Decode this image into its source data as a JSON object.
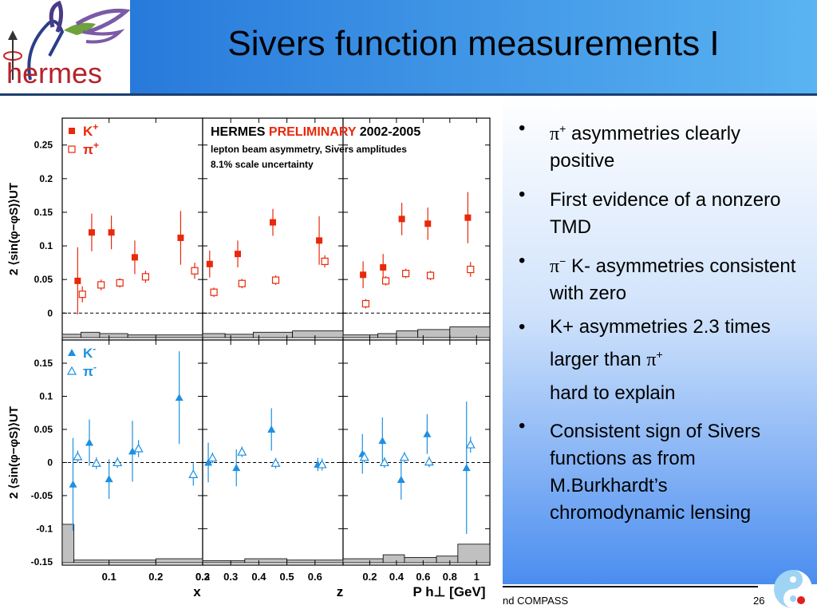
{
  "slide": {
    "title": "Sivers function measurements I",
    "logo_text": "hermes",
    "footer_text": "nd COMPASS",
    "page_number": "26",
    "colors": {
      "header_left": "#1e6fd6",
      "header_right": "#5ab3f2",
      "kplus": "#e8290b",
      "kminus": "#1e90e0"
    }
  },
  "bullets": [
    {
      "pre": "",
      "sym": "π",
      "sup": "+",
      "text": " asymmetries clearly positive",
      "extra": ""
    },
    {
      "pre": "",
      "sym": "",
      "sup": "",
      "text": " First evidence of a nonzero TMD",
      "extra": ""
    },
    {
      "pre": "",
      "sym": "π",
      "sup": "−",
      "text": " K- asymmetries consistent with zero",
      "extra": ""
    },
    {
      "pre": "K+ asymmetries 2.3 times larger than ",
      "sym": "π",
      "sup": "+",
      "text": "",
      "extra": "hard to explain"
    },
    {
      "pre": "",
      "sym": "",
      "sup": "",
      "text": "Consistent sign of Sivers functions as from M.Burkhardt’s chromodynamic lensing",
      "extra": ""
    }
  ],
  "chart_data": {
    "type": "scatter",
    "header": {
      "part1": "HERMES ",
      "part2": "PRELIMINARY",
      "part3": " 2002-2005",
      "line2": "lepton beam asymmetry, Sivers amplitudes",
      "line3": "8.1% scale uncertainty"
    },
    "y_label": "2 ⟨sin(φ−φS)⟩UT",
    "x_labels": [
      "x",
      "z",
      "P h⊥ [GeV]"
    ],
    "x_ticks": [
      {
        "range": [
          0,
          0.3
        ],
        "ticks": [
          0.1,
          0.2,
          0.3
        ],
        "labels": [
          "0.1",
          "0.2",
          "0.3"
        ]
      },
      {
        "range": [
          0.2,
          0.7
        ],
        "ticks": [
          0.2,
          0.3,
          0.4,
          0.5,
          0.6
        ],
        "labels": [
          "0.2",
          "0.3",
          "0.4",
          "0.5",
          "0.6"
        ]
      },
      {
        "range": [
          0,
          1.1
        ],
        "ticks": [
          0.2,
          0.4,
          0.6,
          0.8,
          1.0
        ],
        "labels": [
          "0.2",
          "0.4",
          "0.6",
          "0.8",
          "1"
        ]
      }
    ],
    "rows": [
      {
        "ylim": [
          -0.04,
          0.29
        ],
        "yticks": [
          0,
          0.05,
          0.1,
          0.15,
          0.2,
          0.25
        ],
        "ytick_labels": [
          "0",
          "0.05",
          "0.1",
          "0.15",
          "0.2",
          "0.25"
        ],
        "legend": [
          {
            "label": "K",
            "sup": "+",
            "marker": "square-filled"
          },
          {
            "label": "π",
            "sup": "+",
            "marker": "square-open"
          }
        ],
        "color": "#e8290b",
        "series": [
          {
            "name": "K+",
            "marker": "square-filled",
            "panels": [
              [
                {
                  "x": 0.033,
                  "y": 0.048,
                  "err": 0.05
                },
                {
                  "x": 0.063,
                  "y": 0.12,
                  "err": 0.028
                },
                {
                  "x": 0.105,
                  "y": 0.12,
                  "err": 0.025
                },
                {
                  "x": 0.155,
                  "y": 0.083,
                  "err": 0.025
                },
                {
                  "x": 0.253,
                  "y": 0.112,
                  "err": 0.04
                }
              ],
              [
                {
                  "x": 0.225,
                  "y": 0.073,
                  "err": 0.02
                },
                {
                  "x": 0.325,
                  "y": 0.088,
                  "err": 0.02
                },
                {
                  "x": 0.45,
                  "y": 0.135,
                  "err": 0.02
                },
                {
                  "x": 0.615,
                  "y": 0.108,
                  "err": 0.036
                }
              ],
              [
                {
                  "x": 0.15,
                  "y": 0.057,
                  "err": 0.02
                },
                {
                  "x": 0.3,
                  "y": 0.068,
                  "err": 0.02
                },
                {
                  "x": 0.44,
                  "y": 0.14,
                  "err": 0.024
                },
                {
                  "x": 0.635,
                  "y": 0.133,
                  "err": 0.024
                },
                {
                  "x": 0.935,
                  "y": 0.142,
                  "err": 0.038
                }
              ]
            ]
          },
          {
            "name": "π+",
            "marker": "square-open",
            "panels": [
              [
                {
                  "x": 0.043,
                  "y": 0.028,
                  "err": 0.012
                },
                {
                  "x": 0.083,
                  "y": 0.042,
                  "err": 0.008
                },
                {
                  "x": 0.123,
                  "y": 0.045,
                  "err": 0.007
                },
                {
                  "x": 0.178,
                  "y": 0.054,
                  "err": 0.009
                },
                {
                  "x": 0.283,
                  "y": 0.063,
                  "err": 0.012
                }
              ],
              [
                {
                  "x": 0.24,
                  "y": 0.031,
                  "err": 0.007
                },
                {
                  "x": 0.34,
                  "y": 0.044,
                  "err": 0.007
                },
                {
                  "x": 0.46,
                  "y": 0.049,
                  "err": 0.007
                },
                {
                  "x": 0.635,
                  "y": 0.077,
                  "err": 0.009
                }
              ],
              [
                {
                  "x": 0.17,
                  "y": 0.014,
                  "err": 0.007
                },
                {
                  "x": 0.32,
                  "y": 0.048,
                  "err": 0.007
                },
                {
                  "x": 0.47,
                  "y": 0.059,
                  "err": 0.007
                },
                {
                  "x": 0.655,
                  "y": 0.056,
                  "err": 0.007
                },
                {
                  "x": 0.955,
                  "y": 0.065,
                  "err": 0.011
                }
              ]
            ]
          }
        ],
        "syst_bands": [
          [
            {
              "x0": 0.0,
              "x1": 0.04,
              "h": 0.005
            },
            {
              "x0": 0.04,
              "x1": 0.08,
              "h": 0.008
            },
            {
              "x0": 0.08,
              "x1": 0.14,
              "h": 0.006
            },
            {
              "x0": 0.14,
              "x1": 0.3,
              "h": 0.004
            }
          ],
          [
            {
              "x0": 0.2,
              "x1": 0.28,
              "h": 0.006
            },
            {
              "x0": 0.28,
              "x1": 0.38,
              "h": 0.005
            },
            {
              "x0": 0.38,
              "x1": 0.52,
              "h": 0.008
            },
            {
              "x0": 0.52,
              "x1": 0.7,
              "h": 0.01
            }
          ],
          [
            {
              "x0": 0.0,
              "x1": 0.26,
              "h": 0.004
            },
            {
              "x0": 0.26,
              "x1": 0.4,
              "h": 0.006
            },
            {
              "x0": 0.4,
              "x1": 0.56,
              "h": 0.01
            },
            {
              "x0": 0.56,
              "x1": 0.8,
              "h": 0.012
            },
            {
              "x0": 0.8,
              "x1": 1.1,
              "h": 0.016
            }
          ]
        ]
      },
      {
        "ylim": [
          -0.155,
          0.185
        ],
        "yticks": [
          -0.15,
          -0.1,
          -0.05,
          0,
          0.05,
          0.1,
          0.15
        ],
        "ytick_labels": [
          "-0.15",
          "-0.1",
          "-0.05",
          "0",
          "0.05",
          "0.1",
          "0.15"
        ],
        "legend": [
          {
            "label": "K",
            "sup": "-",
            "marker": "triangle-filled"
          },
          {
            "label": "π",
            "sup": "-",
            "marker": "triangle-open"
          }
        ],
        "color": "#1e90e0",
        "series": [
          {
            "name": "K-",
            "marker": "triangle-filled",
            "panels": [
              [
                {
                  "x": 0.023,
                  "y": -0.033,
                  "err": 0.07
                },
                {
                  "x": 0.058,
                  "y": 0.03,
                  "err": 0.035
                },
                {
                  "x": 0.1,
                  "y": -0.025,
                  "err": 0.03
                },
                {
                  "x": 0.15,
                  "y": 0.017,
                  "err": 0.046
                },
                {
                  "x": 0.25,
                  "y": 0.098,
                  "err": 0.07
                }
              ],
              [
                {
                  "x": 0.22,
                  "y": 0.0,
                  "err": 0.03
                },
                {
                  "x": 0.32,
                  "y": -0.008,
                  "err": 0.028
                },
                {
                  "x": 0.445,
                  "y": 0.05,
                  "err": 0.032
                },
                {
                  "x": 0.61,
                  "y": -0.003,
                  "err": 0.01
                }
              ],
              [
                {
                  "x": 0.145,
                  "y": 0.013,
                  "err": 0.03
                },
                {
                  "x": 0.295,
                  "y": 0.033,
                  "err": 0.035
                },
                {
                  "x": 0.435,
                  "y": -0.026,
                  "err": 0.03
                },
                {
                  "x": 0.63,
                  "y": 0.043,
                  "err": 0.03
                },
                {
                  "x": 0.925,
                  "y": -0.008,
                  "err": 0.1
                }
              ]
            ]
          },
          {
            "name": "π-",
            "marker": "triangle-open",
            "panels": [
              [
                {
                  "x": 0.033,
                  "y": 0.009,
                  "err": 0.009
                },
                {
                  "x": 0.073,
                  "y": -0.001,
                  "err": 0.009
                },
                {
                  "x": 0.118,
                  "y": 0.0,
                  "err": 0.008
                },
                {
                  "x": 0.163,
                  "y": 0.021,
                  "err": 0.013
                },
                {
                  "x": 0.28,
                  "y": -0.018,
                  "err": 0.017
                }
              ],
              [
                {
                  "x": 0.235,
                  "y": 0.007,
                  "err": 0.008
                },
                {
                  "x": 0.34,
                  "y": 0.016,
                  "err": 0.008
                },
                {
                  "x": 0.46,
                  "y": -0.001,
                  "err": 0.008
                },
                {
                  "x": 0.625,
                  "y": -0.003,
                  "err": 0.009
                }
              ],
              [
                {
                  "x": 0.16,
                  "y": 0.008,
                  "err": 0.008
                },
                {
                  "x": 0.31,
                  "y": 0.0,
                  "err": 0.008
                },
                {
                  "x": 0.46,
                  "y": 0.008,
                  "err": 0.008
                },
                {
                  "x": 0.645,
                  "y": 0.001,
                  "err": 0.008
                },
                {
                  "x": 0.955,
                  "y": 0.027,
                  "err": 0.012
                }
              ]
            ]
          }
        ],
        "syst_bands": [
          [
            {
              "x0": 0.0,
              "x1": 0.025,
              "h": 0.058
            },
            {
              "x0": 0.025,
              "x1": 0.2,
              "h": 0.004
            },
            {
              "x0": 0.2,
              "x1": 0.3,
              "h": 0.006
            }
          ],
          [
            {
              "x0": 0.2,
              "x1": 0.35,
              "h": 0.003
            },
            {
              "x0": 0.35,
              "x1": 0.5,
              "h": 0.006
            },
            {
              "x0": 0.5,
              "x1": 0.7,
              "h": 0.004
            }
          ],
          [
            {
              "x0": 0.0,
              "x1": 0.3,
              "h": 0.006
            },
            {
              "x0": 0.3,
              "x1": 0.46,
              "h": 0.012
            },
            {
              "x0": 0.46,
              "x1": 0.7,
              "h": 0.008
            },
            {
              "x0": 0.7,
              "x1": 0.86,
              "h": 0.01
            },
            {
              "x0": 0.86,
              "x1": 1.1,
              "h": 0.028
            }
          ]
        ]
      }
    ]
  }
}
